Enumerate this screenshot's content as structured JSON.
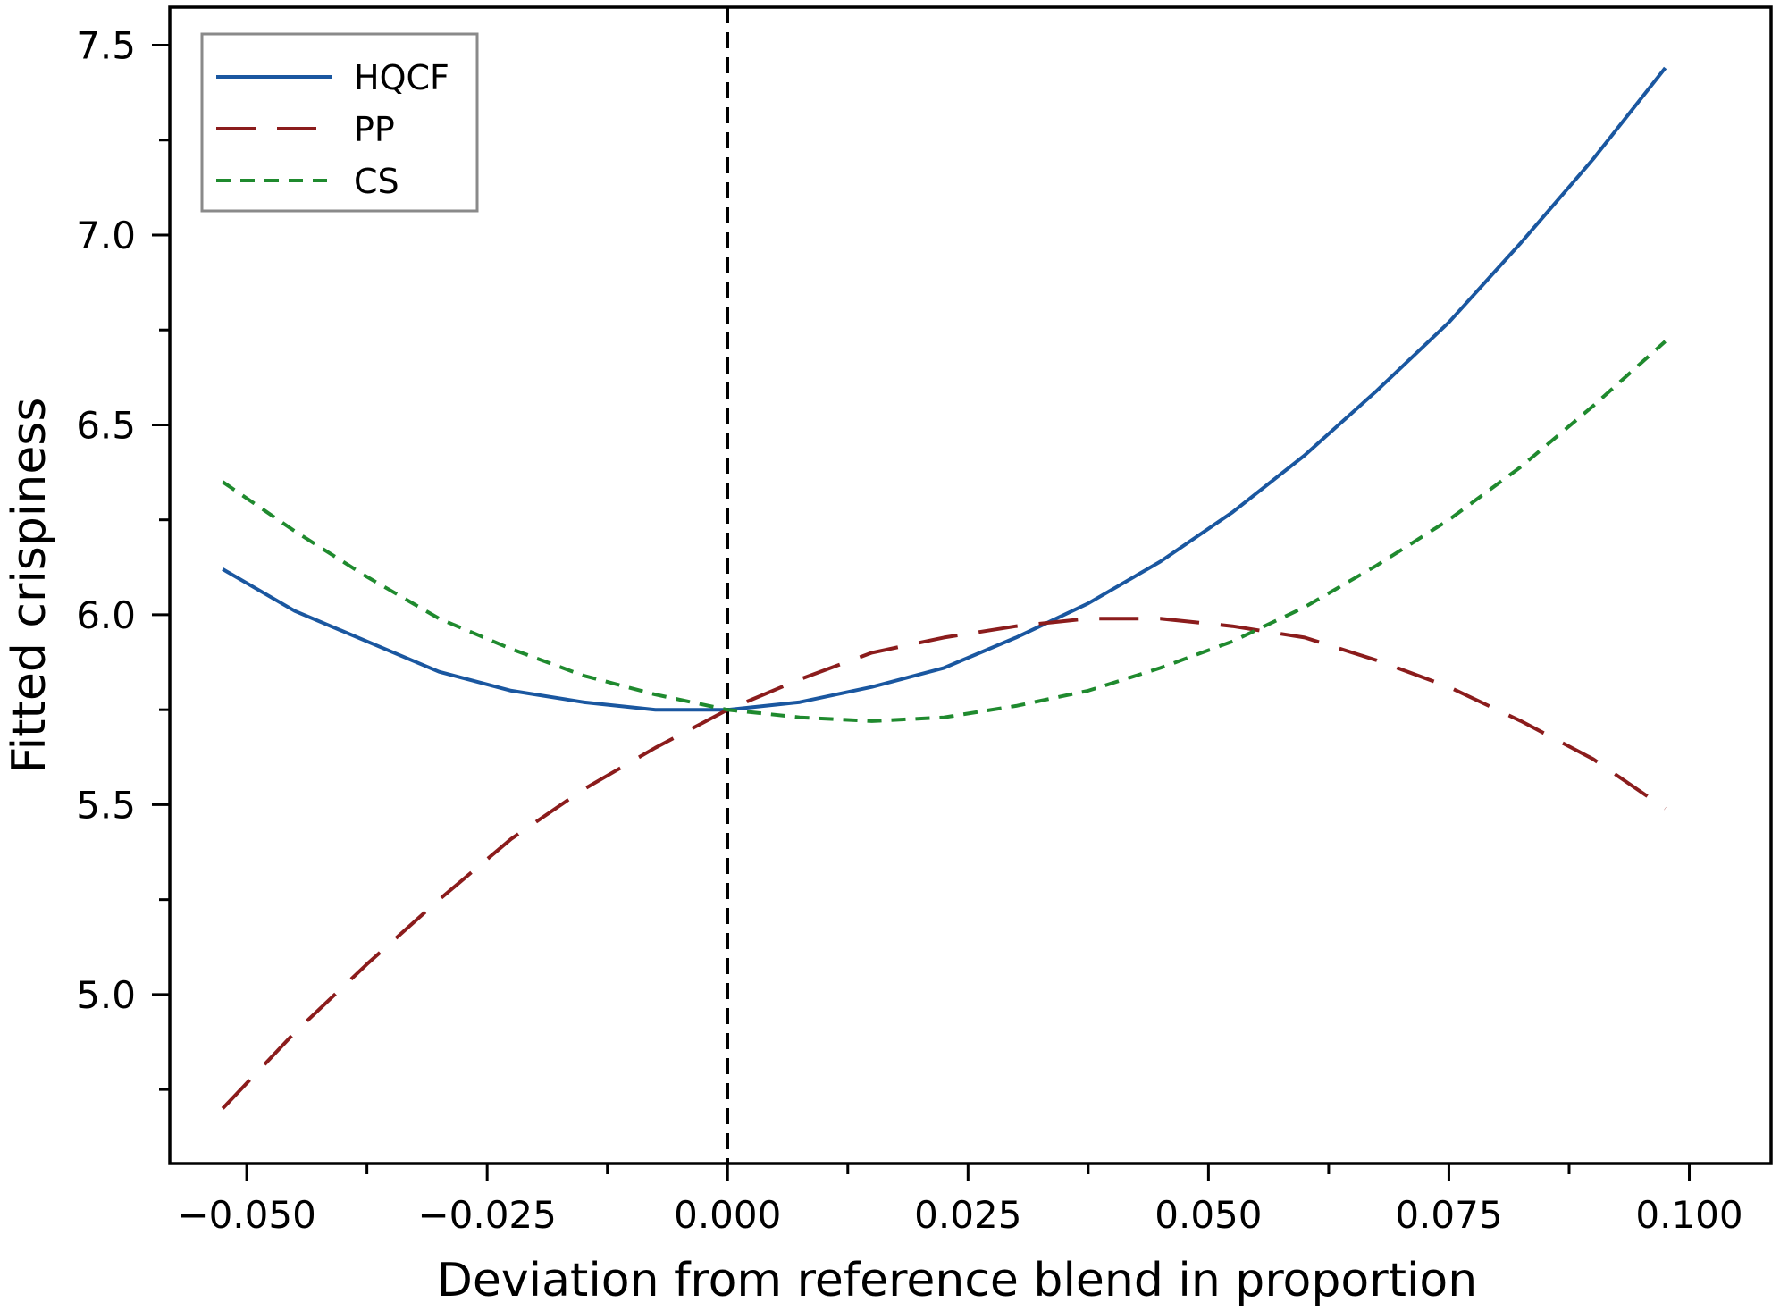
{
  "chart_data": {
    "type": "line",
    "title": "",
    "xlabel": "Deviation from reference blend in proportion",
    "ylabel": "Fitted crispiness",
    "xlim": [
      -0.058,
      0.1085
    ],
    "ylim": [
      4.555,
      7.6
    ],
    "x_ticks": [
      -0.05,
      -0.025,
      0.0,
      0.025,
      0.05,
      0.075,
      0.1
    ],
    "x_tick_labels": [
      "−0.050",
      "−0.025",
      "0.000",
      "0.025",
      "0.050",
      "0.075",
      "0.100"
    ],
    "x_minor_ticks": [
      -0.0375,
      -0.0125,
      0.0125,
      0.0375,
      0.0625,
      0.0875
    ],
    "y_ticks": [
      5.0,
      5.5,
      6.0,
      6.5,
      7.0,
      7.5
    ],
    "y_tick_labels": [
      "5.0",
      "5.5",
      "6.0",
      "6.5",
      "7.0",
      "7.5"
    ],
    "y_minor_ticks": [
      4.75,
      5.25,
      5.75,
      6.25,
      6.75,
      7.25
    ],
    "grid": false,
    "legend_position": "top-left",
    "reference_line_x": 0.0,
    "series": [
      {
        "name": "HQCF",
        "style": "solid",
        "color": "#1a57a0",
        "x": [
          -0.0525,
          -0.045,
          -0.0375,
          -0.03,
          -0.0225,
          -0.015,
          -0.0075,
          0.0,
          0.0075,
          0.015,
          0.0225,
          0.03,
          0.0375,
          0.045,
          0.0525,
          0.06,
          0.0675,
          0.075,
          0.0825,
          0.09,
          0.0975
        ],
        "values": [
          6.12,
          6.01,
          5.93,
          5.85,
          5.8,
          5.77,
          5.75,
          5.75,
          5.77,
          5.81,
          5.86,
          5.94,
          6.03,
          6.14,
          6.27,
          6.42,
          6.59,
          6.77,
          6.98,
          7.2,
          7.44
        ]
      },
      {
        "name": "PP",
        "style": "longdash",
        "color": "#8b1c1c",
        "x": [
          -0.0525,
          -0.045,
          -0.0375,
          -0.03,
          -0.0225,
          -0.015,
          -0.0075,
          0.0,
          0.0075,
          0.015,
          0.0225,
          0.03,
          0.0375,
          0.045,
          0.0525,
          0.06,
          0.0675,
          0.075,
          0.0825,
          0.09,
          0.0975
        ],
        "values": [
          4.7,
          4.9,
          5.08,
          5.25,
          5.41,
          5.54,
          5.65,
          5.75,
          5.83,
          5.9,
          5.94,
          5.97,
          5.99,
          5.99,
          5.97,
          5.94,
          5.88,
          5.81,
          5.72,
          5.62,
          5.49
        ]
      },
      {
        "name": "CS",
        "style": "shortdash",
        "color": "#1f8a2e",
        "x": [
          -0.0525,
          -0.045,
          -0.0375,
          -0.03,
          -0.0225,
          -0.015,
          -0.0075,
          0.0,
          0.0075,
          0.015,
          0.0225,
          0.03,
          0.0375,
          0.045,
          0.0525,
          0.06,
          0.0675,
          0.075,
          0.0825,
          0.09,
          0.0975
        ],
        "values": [
          6.35,
          6.22,
          6.1,
          5.99,
          5.91,
          5.84,
          5.79,
          5.75,
          5.73,
          5.72,
          5.73,
          5.76,
          5.8,
          5.86,
          5.93,
          6.02,
          6.13,
          6.25,
          6.39,
          6.55,
          6.72
        ]
      }
    ]
  }
}
